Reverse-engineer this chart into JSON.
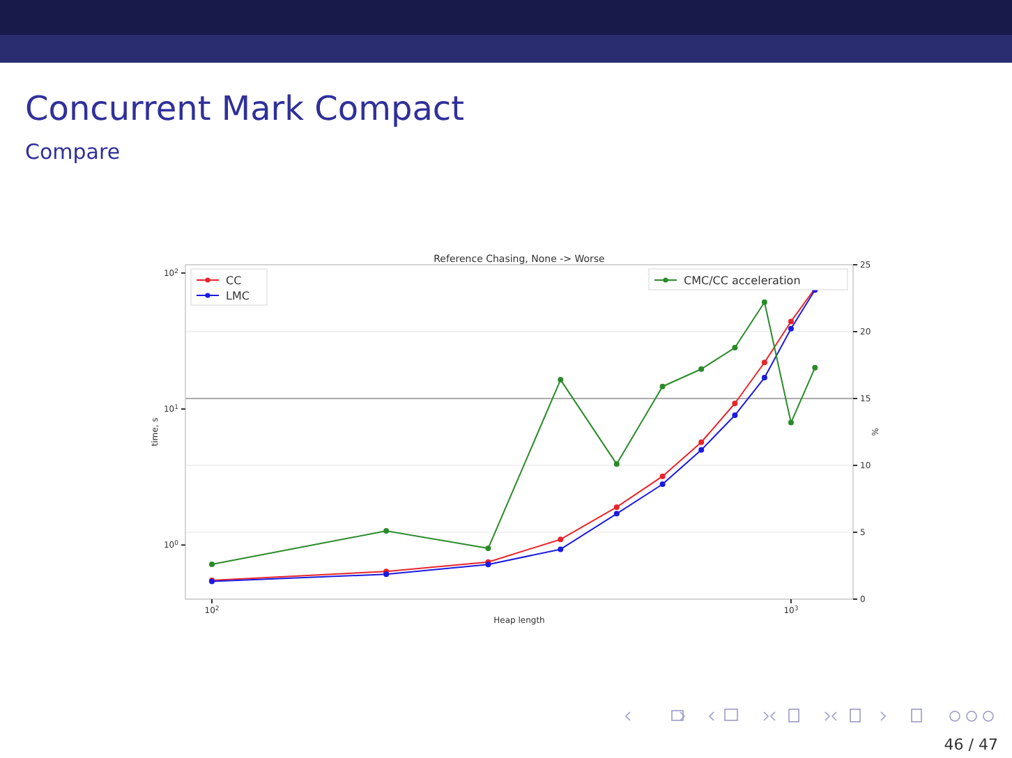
{
  "chart_data": {
    "type": "line",
    "title": "Concurrent Mark Compact",
    "subtitle": "Compare",
    "annotations": [
      "Reference Chasing, None -> Worse",
      "46 / 47"
    ],
    "xlabel": "Heap length",
    "ylabel": "time, s",
    "y2label": "%",
    "x": [
      100,
      200,
      300,
      400,
      500,
      600,
      700,
      800,
      900,
      1000,
      1100
    ],
    "series": [
      {
        "name": "CC",
        "color": "#e8242a",
        "values": [
          0.55,
          0.64,
          0.75,
          1.1,
          1.9,
          3.2,
          5.7,
          11,
          22,
          44,
          77
        ]
      },
      {
        "name": "LMC",
        "color": "#1a1ae0",
        "values": [
          0.54,
          0.61,
          0.72,
          0.93,
          1.7,
          2.8,
          5.0,
          9.0,
          17,
          39,
          75
        ]
      },
      {
        "name": "CMC/CC acceleration",
        "color": "#2a8a2a",
        "axis": "y2",
        "values": [
          2.6,
          5.1,
          3.8,
          16.4,
          10.1,
          15.9,
          17.2,
          18.8,
          22.2,
          13.2,
          17.3
        ]
      }
    ],
    "log": "xy",
    "xlim": [
      90,
      1280
    ],
    "xticks": [
      {
        "value": 100,
        "label": "10$^{2}$"
      },
      {
        "value": 1000,
        "label": "10$^{3}$"
      }
    ],
    "ylim": [
      0.4,
      115
    ],
    "yticks": [
      {
        "value": 1,
        "label": "10$^{0}$"
      },
      {
        "value": 10,
        "label": "10$^{1}$"
      },
      {
        "value": 100,
        "label": "10$^{2}$"
      }
    ],
    "y2lim": [
      0,
      25
    ],
    "y2ticks": [
      0,
      5,
      10,
      15,
      20,
      25
    ],
    "ref_lines": [
      {
        "axis": "y2",
        "value": 15,
        "color": "#aaaaaa"
      }
    ],
    "grid": true,
    "legend": "top",
    "marker": "circle",
    "line_style": "solid"
  }
}
